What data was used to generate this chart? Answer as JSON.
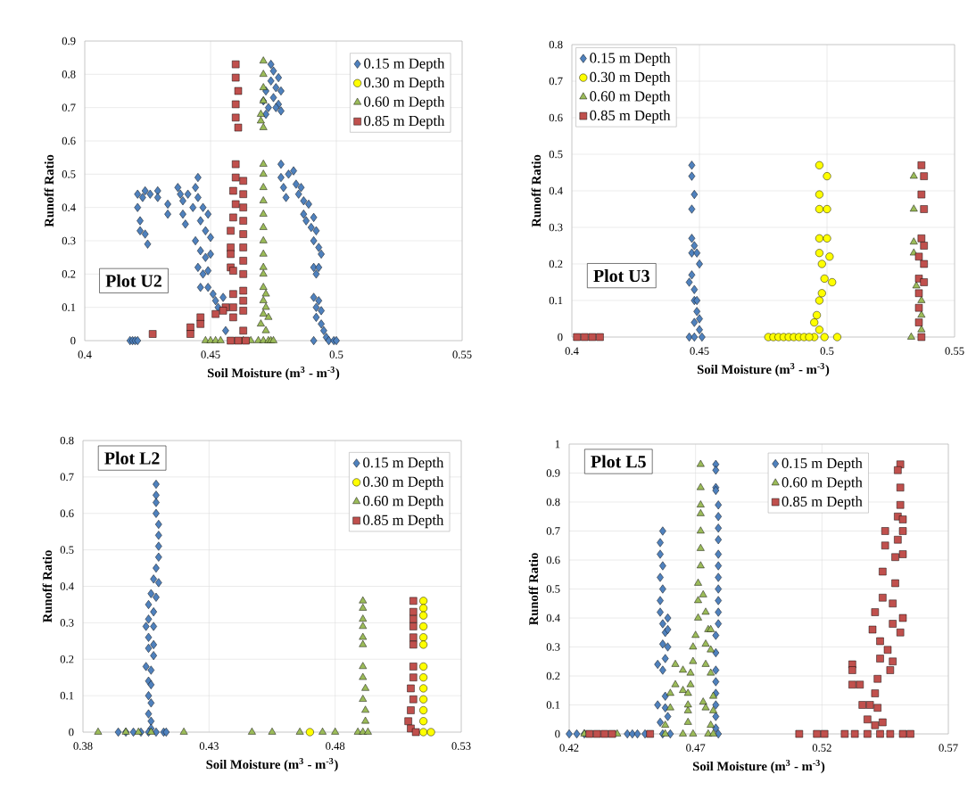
{
  "chart_data": [
    {
      "type": "scatter",
      "xlabel": "Soil Moisture (m$^{3}$ - m$^{-3}$)",
      "ylabel": "Runoff Ratio",
      "annotations": [
        "Plot U2"
      ],
      "xlim": [
        0.4,
        0.55
      ],
      "ylim": [
        0,
        0.9
      ],
      "xticks": [
        0.4,
        0.45,
        0.5,
        0.55
      ],
      "yticks": [
        0,
        0.1,
        0.2,
        0.3,
        0.4,
        0.5,
        0.6,
        0.7,
        0.8,
        0.9
      ],
      "grid": true,
      "legend": "top right",
      "series": [
        {
          "name": "0.15 m Depth",
          "color": "#4f81bd",
          "marker": "diamond",
          "x": [
            0.418,
            0.419,
            0.42,
            0.421,
            0.421,
            0.421,
            0.422,
            0.422,
            0.423,
            0.424,
            0.424,
            0.425,
            0.426,
            0.429,
            0.429,
            0.433,
            0.433,
            0.437,
            0.438,
            0.439,
            0.439,
            0.44,
            0.441,
            0.443,
            0.444,
            0.445,
            0.445,
            0.444,
            0.446,
            0.446,
            0.445,
            0.447,
            0.448,
            0.448,
            0.447,
            0.449,
            0.45,
            0.45,
            0.449,
            0.446,
            0.449,
            0.451,
            0.452,
            0.453,
            0.455,
            0.456,
            0.478,
            0.478,
            0.479,
            0.48,
            0.481,
            0.483,
            0.484,
            0.485,
            0.486,
            0.487,
            0.487,
            0.488,
            0.489,
            0.49,
            0.491,
            0.491,
            0.492,
            0.493,
            0.494,
            0.491,
            0.492,
            0.493,
            0.491,
            0.492,
            0.492,
            0.493,
            0.494,
            0.494,
            0.495,
            0.491,
            0.496,
            0.497,
            0.499,
            0.5,
            0.471,
            0.472,
            0.472,
            0.473,
            0.474,
            0.474,
            0.475,
            0.475,
            0.476,
            0.477,
            0.477,
            0.478,
            0.478,
            0.476
          ],
          "values": [
            0,
            0,
            0,
            0,
            0.44,
            0.4,
            0.36,
            0.33,
            0.43,
            0.45,
            0.32,
            0.29,
            0.44,
            0.45,
            0.43,
            0.41,
            0.38,
            0.46,
            0.44,
            0.42,
            0.38,
            0.35,
            0.44,
            0.4,
            0.46,
            0.49,
            0.43,
            0.3,
            0.36,
            0.27,
            0.22,
            0.4,
            0.33,
            0.25,
            0.2,
            0.38,
            0.31,
            0.26,
            0.21,
            0.16,
            0.16,
            0.14,
            0.12,
            0.1,
            0.13,
            0.03,
            0.53,
            0.49,
            0.46,
            0.43,
            0.5,
            0.51,
            0.47,
            0.44,
            0.46,
            0.42,
            0.38,
            0.36,
            0.41,
            0.34,
            0.37,
            0.3,
            0.33,
            0.28,
            0.26,
            0.22,
            0.2,
            0.22,
            0.13,
            0.1,
            0.07,
            0.12,
            0.09,
            0.05,
            0.03,
            0,
            0.01,
            0,
            0,
            0,
            0.72,
            0.68,
            0.75,
            0.7,
            0.83,
            0.78,
            0.81,
            0.73,
            0.76,
            0.79,
            0.71,
            0.69,
            0.75,
            0.7
          ]
        },
        {
          "name": "0.30 m Depth",
          "color": "#ffff00",
          "marker": "circle"
        },
        {
          "name": "0.60 m Depth",
          "color": "#9bbb59",
          "marker": "triangle",
          "x": [
            0.471,
            0.471,
            0.471,
            0.471,
            0.47,
            0.471,
            0.47,
            0.471,
            0.471,
            0.471,
            0.471,
            0.471,
            0.471,
            0.471,
            0.471,
            0.471,
            0.471,
            0.471,
            0.472,
            0.471,
            0.472,
            0.471,
            0.473,
            0.47,
            0.472,
            0.448,
            0.45,
            0.452,
            0.454,
            0.463,
            0.466,
            0.469,
            0.471,
            0.473,
            0.474,
            0.475
          ],
          "values": [
            0.84,
            0.8,
            0.76,
            0.72,
            0.68,
            0.64,
            0.66,
            0.53,
            0.5,
            0.46,
            0.42,
            0.38,
            0.34,
            0.3,
            0.26,
            0.22,
            0.2,
            0.16,
            0.14,
            0.12,
            0.1,
            0.08,
            0.07,
            0.05,
            0.03,
            0,
            0,
            0,
            0,
            0,
            0,
            0,
            0,
            0,
            0,
            0
          ]
        },
        {
          "name": "0.85 m Depth",
          "color": "#c0504d",
          "marker": "square",
          "x": [
            0.46,
            0.46,
            0.461,
            0.46,
            0.46,
            0.461,
            0.46,
            0.46,
            0.459,
            0.46,
            0.459,
            0.458,
            0.458,
            0.458,
            0.459,
            0.458,
            0.463,
            0.463,
            0.463,
            0.463,
            0.463,
            0.463,
            0.463,
            0.463,
            0.463,
            0.463,
            0.463,
            0.463,
            0.459,
            0.459,
            0.459,
            0.456,
            0.455,
            0.452,
            0.446,
            0.446,
            0.442,
            0.442,
            0.427,
            0.458,
            0.461,
            0.464
          ],
          "values": [
            0.83,
            0.79,
            0.75,
            0.71,
            0.67,
            0.64,
            0.53,
            0.49,
            0.45,
            0.41,
            0.37,
            0.33,
            0.28,
            0.22,
            0.21,
            0.26,
            0.48,
            0.44,
            0.4,
            0.36,
            0.32,
            0.28,
            0.24,
            0.2,
            0.15,
            0.12,
            0.09,
            0.03,
            0.14,
            0.1,
            0.07,
            0.1,
            0.09,
            0.08,
            0.07,
            0.05,
            0.04,
            0.02,
            0.02,
            0,
            0,
            0
          ]
        }
      ]
    },
    {
      "type": "scatter",
      "xlabel": "Soil Moisture (m$^{3}$ - m$^{-3}$)",
      "ylabel": "Runoff Ratio",
      "annotations": [
        "Plot U3"
      ],
      "xlim": [
        0.4,
        0.55
      ],
      "ylim": [
        0,
        0.8
      ],
      "xticks": [
        0.4,
        0.45,
        0.5,
        0.55
      ],
      "yticks": [
        0,
        0.1,
        0.2,
        0.3,
        0.4,
        0.5,
        0.6,
        0.7,
        0.8
      ],
      "grid": true,
      "legend": "top left",
      "series": [
        {
          "name": "0.15 m Depth",
          "color": "#4f81bd",
          "marker": "diamond",
          "x": [
            0.447,
            0.447,
            0.448,
            0.447,
            0.447,
            0.448,
            0.447,
            0.449,
            0.45,
            0.446,
            0.447,
            0.448,
            0.448,
            0.449,
            0.449,
            0.45,
            0.448,
            0.45,
            0.446,
            0.448,
            0.451
          ],
          "values": [
            0.47,
            0.44,
            0.39,
            0.35,
            0.27,
            0.25,
            0.23,
            0.23,
            0.2,
            0.15,
            0.17,
            0.13,
            0.1,
            0.1,
            0.07,
            0.05,
            0.04,
            0.02,
            0,
            0,
            0
          ]
        },
        {
          "name": "0.30 m Depth",
          "color": "#ffff00",
          "marker": "circle",
          "x": [
            0.497,
            0.5,
            0.497,
            0.497,
            0.5,
            0.497,
            0.5,
            0.497,
            0.501,
            0.498,
            0.499,
            0.502,
            0.497,
            0.498,
            0.496,
            0.495,
            0.497,
            0.495,
            0.499,
            0.504,
            0.477,
            0.479,
            0.481,
            0.483,
            0.485,
            0.487,
            0.489,
            0.491,
            0.493
          ],
          "values": [
            0.47,
            0.44,
            0.39,
            0.35,
            0.35,
            0.27,
            0.27,
            0.23,
            0.22,
            0.2,
            0.16,
            0.15,
            0.1,
            0.12,
            0.06,
            0.04,
            0.02,
            0,
            0,
            0,
            0,
            0,
            0,
            0,
            0,
            0,
            0,
            0,
            0
          ]
        },
        {
          "name": "0.60 m Depth",
          "color": "#9bbb59",
          "marker": "triangle",
          "x": [
            0.534,
            0.534,
            0.534,
            0.534,
            0.535,
            0.537,
            0.537,
            0.537,
            0.533
          ],
          "values": [
            0.44,
            0.35,
            0.26,
            0.23,
            0.14,
            0.1,
            0.06,
            0.02,
            0
          ]
        },
        {
          "name": "0.85 m Depth",
          "color": "#c0504d",
          "marker": "square",
          "x": [
            0.402,
            0.405,
            0.408,
            0.411,
            0.537,
            0.538,
            0.537,
            0.538,
            0.537,
            0.538,
            0.536,
            0.538,
            0.536,
            0.538,
            0.536,
            0.536,
            0.536,
            0.537
          ],
          "values": [
            0,
            0,
            0,
            0,
            0.47,
            0.44,
            0.39,
            0.35,
            0.27,
            0.25,
            0.22,
            0.2,
            0.16,
            0.15,
            0.12,
            0.08,
            0.04,
            0
          ]
        }
      ]
    },
    {
      "type": "scatter",
      "xlabel": "Soil Moisture (m$^{3}$ - m$^{-3}$)",
      "ylabel": "Runoff Ratio",
      "annotations": [
        "Plot L2"
      ],
      "xlim": [
        0.38,
        0.53
      ],
      "ylim": [
        0,
        0.8
      ],
      "xticks": [
        0.38,
        0.43,
        0.48,
        0.53
      ],
      "yticks": [
        0,
        0.1,
        0.2,
        0.3,
        0.4,
        0.5,
        0.6,
        0.7,
        0.8
      ],
      "grid": true,
      "legend": "top right",
      "series": [
        {
          "name": "0.15 m Depth",
          "color": "#4f81bd",
          "marker": "diamond",
          "x": [
            0.409,
            0.409,
            0.409,
            0.409,
            0.41,
            0.41,
            0.41,
            0.41,
            0.409,
            0.408,
            0.41,
            0.407,
            0.409,
            0.406,
            0.408,
            0.406,
            0.408,
            0.405,
            0.406,
            0.408,
            0.406,
            0.408,
            0.405,
            0.407,
            0.406,
            0.407,
            0.406,
            0.407,
            0.406,
            0.407,
            0.407,
            0.394,
            0.397,
            0.4,
            0.403,
            0.406,
            0.409,
            0.412,
            0.413
          ],
          "values": [
            0.68,
            0.65,
            0.63,
            0.6,
            0.57,
            0.54,
            0.51,
            0.48,
            0.45,
            0.42,
            0.41,
            0.38,
            0.37,
            0.35,
            0.33,
            0.31,
            0.29,
            0.29,
            0.26,
            0.24,
            0.23,
            0.21,
            0.18,
            0.17,
            0.14,
            0.13,
            0.1,
            0.08,
            0.05,
            0.03,
            0.01,
            0,
            0,
            0,
            0,
            0,
            0,
            0,
            0
          ]
        },
        {
          "name": "0.30 m Depth",
          "color": "#ffff00",
          "marker": "circle",
          "x": [
            0.47,
            0.515,
            0.515,
            0.515,
            0.515,
            0.515,
            0.515,
            0.515,
            0.515,
            0.515,
            0.515,
            0.515,
            0.515,
            0.515,
            0.518
          ],
          "values": [
            0,
            0.36,
            0.34,
            0.32,
            0.29,
            0.26,
            0.24,
            0.18,
            0.15,
            0.12,
            0.09,
            0.06,
            0.03,
            0,
            0
          ]
        },
        {
          "name": "0.60 m Depth",
          "color": "#9bbb59",
          "marker": "triangle",
          "x": [
            0.386,
            0.397,
            0.402,
            0.407,
            0.42,
            0.447,
            0.455,
            0.466,
            0.475,
            0.48,
            0.489,
            0.491,
            0.491,
            0.491,
            0.491,
            0.491,
            0.491,
            0.491,
            0.491,
            0.492,
            0.491,
            0.492,
            0.492,
            0.491,
            0.493
          ],
          "values": [
            0,
            0,
            0,
            0,
            0,
            0,
            0,
            0,
            0,
            0,
            0,
            0.36,
            0.34,
            0.31,
            0.29,
            0.26,
            0.24,
            0.18,
            0.15,
            0.12,
            0.09,
            0.06,
            0.03,
            0,
            0
          ]
        },
        {
          "name": "0.85 m Depth",
          "color": "#c0504d",
          "marker": "square",
          "x": [
            0.511,
            0.511,
            0.511,
            0.511,
            0.511,
            0.511,
            0.511,
            0.511,
            0.51,
            0.511,
            0.51,
            0.509,
            0.51,
            0.512
          ],
          "values": [
            0.36,
            0.33,
            0.31,
            0.29,
            0.26,
            0.24,
            0.18,
            0.15,
            0.12,
            0.09,
            0.06,
            0.03,
            0.01,
            0
          ]
        }
      ]
    },
    {
      "type": "scatter",
      "xlabel": "Soil Moisture (m$^{3}$ - m$^{-3}$)",
      "ylabel": "Runoff Ratio",
      "annotations": [
        "Plot L5"
      ],
      "xlim": [
        0.42,
        0.57
      ],
      "ylim": [
        0,
        1
      ],
      "xticks": [
        0.42,
        0.47,
        0.52,
        0.57
      ],
      "yticks": [
        0,
        0.1,
        0.2,
        0.3,
        0.4,
        0.5,
        0.6,
        0.7,
        0.8,
        0.9,
        1
      ],
      "grid": true,
      "legend": "top",
      "series": [
        {
          "name": "0.15 m Depth",
          "color": "#4f81bd",
          "marker": "diamond",
          "x": [
            0.42,
            0.423,
            0.426,
            0.443,
            0.445,
            0.447,
            0.45,
            0.457,
            0.456,
            0.456,
            0.457,
            0.456,
            0.457,
            0.456,
            0.456,
            0.457,
            0.458,
            0.457,
            0.459,
            0.459,
            0.459,
            0.458,
            0.455,
            0.457,
            0.455,
            0.456,
            0.458,
            0.458,
            0.459,
            0.457,
            0.46,
            0.478,
            0.478,
            0.478,
            0.478,
            0.479,
            0.479,
            0.479,
            0.479,
            0.479,
            0.479,
            0.479,
            0.479,
            0.479,
            0.479,
            0.479,
            0.478,
            0.478,
            0.478,
            0.478,
            0.478,
            0.478,
            0.478,
            0.478,
            0.479
          ],
          "values": [
            0,
            0,
            0,
            0,
            0,
            0,
            0,
            0.7,
            0.66,
            0.62,
            0.58,
            0.54,
            0.5,
            0.46,
            0.42,
            0.38,
            0.35,
            0.31,
            0.4,
            0.36,
            0.3,
            0.26,
            0.24,
            0.22,
            0.1,
            0.04,
            0.13,
            0.09,
            0.06,
            0,
            0,
            0.93,
            0.91,
            0.85,
            0.84,
            0.79,
            0.75,
            0.71,
            0.67,
            0.62,
            0.58,
            0.54,
            0.5,
            0.46,
            0.42,
            0.38,
            0.34,
            0.28,
            0.22,
            0.18,
            0.14,
            0.1,
            0.06,
            0.02,
            0
          ]
        },
        {
          "name": "0.60 m Depth",
          "color": "#9bbb59",
          "marker": "triangle",
          "x": [
            0.426,
            0.439,
            0.458,
            0.458,
            0.46,
            0.46,
            0.462,
            0.462,
            0.465,
            0.465,
            0.467,
            0.467,
            0.467,
            0.467,
            0.468,
            0.468,
            0.469,
            0.469,
            0.47,
            0.471,
            0.471,
            0.471,
            0.472,
            0.472,
            0.472,
            0.472,
            0.472,
            0.472,
            0.472,
            0.473,
            0.474,
            0.475,
            0.474,
            0.474,
            0.473,
            0.474,
            0.476,
            0.476,
            0.476,
            0.477,
            0.477,
            0.476,
            0.475,
            0.469,
            0.465,
            0.477
          ],
          "values": [
            0,
            0,
            0,
            0.03,
            0.09,
            0.14,
            0.17,
            0.24,
            0.15,
            0.22,
            0.04,
            0.08,
            0.1,
            0.14,
            0.17,
            0.21,
            0.25,
            0.3,
            0.34,
            0.4,
            0.46,
            0.52,
            0.58,
            0.64,
            0.7,
            0.76,
            0.79,
            0.85,
            0.93,
            0.48,
            0.42,
            0.36,
            0.31,
            0.24,
            0.11,
            0.09,
            0.29,
            0.36,
            0.21,
            0.13,
            0.08,
            0.03,
            0,
            0,
            0,
            0
          ]
        },
        {
          "name": "0.85 m Depth",
          "color": "#c0504d",
          "marker": "square",
          "x": [
            0.428,
            0.431,
            0.434,
            0.437,
            0.452,
            0.511,
            0.518,
            0.521,
            0.529,
            0.533,
            0.538,
            0.543,
            0.547,
            0.552,
            0.555,
            0.532,
            0.532,
            0.532,
            0.535,
            0.536,
            0.538,
            0.539,
            0.541,
            0.541,
            0.542,
            0.542,
            0.544,
            0.543,
            0.54,
            0.541,
            0.543,
            0.544,
            0.544,
            0.545,
            0.545,
            0.546,
            0.547,
            0.548,
            0.548,
            0.548,
            0.549,
            0.549,
            0.55,
            0.55,
            0.551,
            0.552,
            0.552,
            0.552,
            0.551,
            0.551,
            0.55,
            0.552,
            0.551
          ],
          "values": [
            0,
            0,
            0,
            0,
            0,
            0,
            0,
            0,
            0,
            0,
            0,
            0,
            0,
            0,
            0,
            0.24,
            0.22,
            0.17,
            0.17,
            0.1,
            0.05,
            0.1,
            0.03,
            0.14,
            0.19,
            0.09,
            0.04,
            0.26,
            0.36,
            0.42,
            0.32,
            0.47,
            0.56,
            0.65,
            0.7,
            0.29,
            0.22,
            0.25,
            0.38,
            0.45,
            0.52,
            0.61,
            0.67,
            0.75,
            0.79,
            0.7,
            0.62,
            0.74,
            0.85,
            0.93,
            0.91,
            0.4,
            0.35
          ]
        }
      ]
    }
  ]
}
